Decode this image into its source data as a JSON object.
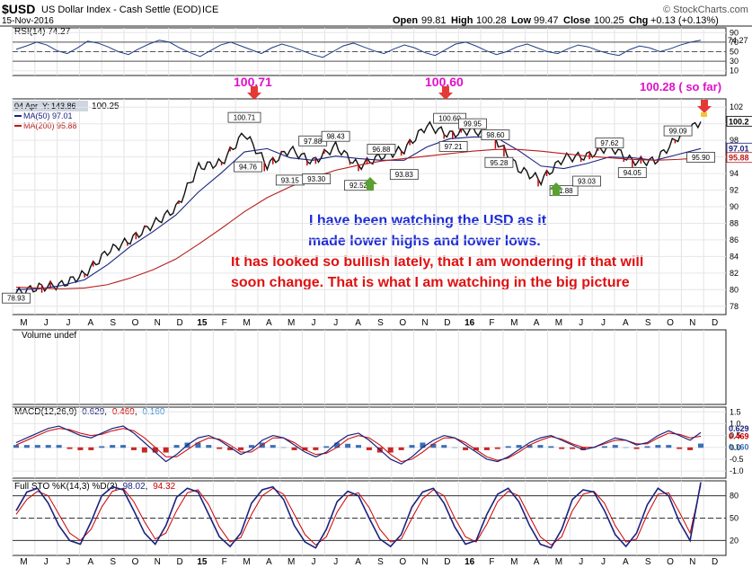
{
  "header": {
    "symbol": "$USD",
    "description": "US Dollar Index - Cash Settle (EOD)",
    "exchange": "ICE",
    "date": "15-Nov-2016",
    "brand": "© StockCharts.com",
    "quote": {
      "open_label": "Open",
      "open": "99.81",
      "high_label": "High",
      "high": "100.28",
      "low_label": "Low",
      "low": "99.47",
      "close_label": "Close",
      "close": "100.25",
      "chg_label": "Chg",
      "chg": "+0.13 (+0.13%)"
    }
  },
  "colors": {
    "price": "#111111",
    "price_down": "#cc0000",
    "ma50": "#1a237e",
    "ma200": "#b71c1c",
    "rsi": "#1f3c88",
    "rsi_fill": "#6f86c8",
    "stoch_k": "#1a237e",
    "stoch_d": "#cc0000",
    "macd": "#1a237e",
    "signal": "#cc0000",
    "hist_pos": "#3b6fb6",
    "hist_neg": "#c62828",
    "annot_magenta": "#e010c8",
    "annot_blue": "#1d2bd6",
    "annot_red": "#e01010",
    "arrow_red": "#e53935",
    "arrow_green": "#5aa033"
  },
  "chart_data": [
    {
      "panel": "rsi",
      "type": "line",
      "title": "RSI(14) 74.27",
      "y_ticks": [
        "90",
        "70",
        "50",
        "30",
        "10"
      ],
      "last_value": "74.27",
      "values": [
        55,
        62,
        70,
        64,
        52,
        46,
        58,
        72,
        68,
        60,
        50,
        44,
        56,
        66,
        74,
        70,
        58,
        48,
        40,
        52,
        64,
        70,
        62,
        54,
        46,
        58,
        66,
        60,
        52,
        44,
        38,
        50,
        62,
        68,
        60,
        52,
        46,
        56,
        64,
        58,
        48,
        42,
        54,
        66,
        70,
        62,
        52,
        44,
        50,
        60,
        66,
        58,
        50,
        46,
        56,
        64,
        60,
        52,
        46,
        42,
        54,
        62,
        58,
        50,
        56,
        64,
        70,
        74
      ]
    },
    {
      "panel": "price",
      "type": "line",
      "legend_date": "04 Apr",
      "legend_y": "143.86",
      "legend_close": "100.25",
      "ma50_label": "MA(50) 97.01",
      "ma200_label": "MA(200) 95.88",
      "y_ticks": [
        "102",
        "100",
        "98",
        "96",
        "94",
        "92",
        "90",
        "88",
        "86",
        "84",
        "82",
        "80",
        "78"
      ],
      "right_badges": [
        "100.2",
        "97.01",
        "95.88"
      ],
      "x_labels": [
        "M",
        "J",
        "J",
        "A",
        "S",
        "O",
        "N",
        "D",
        "15",
        "F",
        "M",
        "A",
        "M",
        "J",
        "J",
        "A",
        "S",
        "O",
        "N",
        "D",
        "16",
        "F",
        "M",
        "A",
        "M",
        "J",
        "J",
        "A",
        "S",
        "O",
        "N",
        "D"
      ],
      "x": [
        "2014-05",
        "2014-06",
        "2014-07",
        "2014-08",
        "2014-09",
        "2014-10",
        "2014-11",
        "2014-12",
        "2015-01",
        "2015-02",
        "2015-03",
        "2015-04",
        "2015-05",
        "2015-06",
        "2015-07",
        "2015-08",
        "2015-09",
        "2015-10",
        "2015-11",
        "2015-12",
        "2016-01",
        "2016-02",
        "2016-03",
        "2016-04",
        "2016-05",
        "2016-06",
        "2016-07",
        "2016-08",
        "2016-09",
        "2016-10",
        "2016-11"
      ],
      "close": [
        79.6,
        80.3,
        80.6,
        81.9,
        84.6,
        86.0,
        87.9,
        89.8,
        94.8,
        95.3,
        98.9,
        95.0,
        96.9,
        95.4,
        97.3,
        94.9,
        96.1,
        96.9,
        99.8,
        98.7,
        99.3,
        98.2,
        94.6,
        93.2,
        95.9,
        96.1,
        97.3,
        95.5,
        95.5,
        98.4,
        100.25
      ],
      "ma50": [
        80.0,
        80.1,
        80.5,
        81.2,
        83.0,
        85.2,
        87.0,
        89.0,
        91.8,
        94.1,
        96.6,
        97.0,
        95.9,
        95.6,
        96.1,
        95.8,
        95.6,
        95.6,
        97.2,
        98.2,
        98.4,
        98.4,
        96.8,
        94.9,
        94.6,
        95.2,
        96.0,
        95.9,
        95.6,
        96.3,
        97.01
      ],
      "ma200": [
        80.3,
        80.2,
        80.1,
        80.2,
        80.6,
        81.4,
        82.4,
        83.7,
        85.5,
        87.4,
        89.4,
        91.1,
        92.4,
        93.5,
        94.4,
        95.0,
        95.5,
        95.8,
        96.1,
        96.4,
        96.7,
        96.9,
        96.9,
        96.7,
        96.4,
        96.1,
        95.9,
        95.7,
        95.6,
        95.7,
        95.88
      ],
      "peak_labels": [
        {
          "x": "2014-05",
          "label": "78.93",
          "value": 78.93
        },
        {
          "x": "2015-03",
          "label": "100.71",
          "value": 100.71
        },
        {
          "x": "2015-03",
          "label": "94.76",
          "value": 94.76
        },
        {
          "x": "2015-05",
          "label": "93.15",
          "value": 93.15
        },
        {
          "x": "2015-06",
          "label": "97.88",
          "value": 97.88
        },
        {
          "x": "2015-06",
          "label": "93.30",
          "value": 93.3
        },
        {
          "x": "2015-07",
          "label": "98.43",
          "value": 98.43
        },
        {
          "x": "2015-08",
          "label": "92.52",
          "value": 92.52
        },
        {
          "x": "2015-09",
          "label": "96.88",
          "value": 96.88
        },
        {
          "x": "2015-10",
          "label": "93.83",
          "value": 93.83
        },
        {
          "x": "2015-12",
          "label": "100.60",
          "value": 100.6
        },
        {
          "x": "2015-12",
          "label": "97.21",
          "value": 97.21
        },
        {
          "x": "2016-01",
          "label": "99.95",
          "value": 99.95
        },
        {
          "x": "2016-02",
          "label": "98.60",
          "value": 98.6
        },
        {
          "x": "2016-02",
          "label": "95.28",
          "value": 95.28
        },
        {
          "x": "2016-05",
          "label": "91.88",
          "value": 91.88
        },
        {
          "x": "2016-06",
          "label": "93.03",
          "value": 93.03
        },
        {
          "x": "2016-07",
          "label": "97.62",
          "value": 97.62
        },
        {
          "x": "2016-08",
          "label": "94.05",
          "value": 94.05
        },
        {
          "x": "2016-10",
          "label": "99.09",
          "value": 99.09
        },
        {
          "x": "2016-11",
          "label": "95.90",
          "value": 95.9
        }
      ],
      "annotations": {
        "high1": "100.71",
        "high2": "100.60",
        "high3": "100.28 ( so far)",
        "note_blue_1": "I have been watching the USD as it",
        "note_blue_2": "made lower highs and lower lows.",
        "note_red_1": "It has looked so bullish lately, that I am wondering if that will",
        "note_red_2": "soon change.  That is what I am watching in the big picture"
      }
    },
    {
      "panel": "volume",
      "type": "bar",
      "title": "Volume undef"
    },
    {
      "panel": "macd",
      "type": "line",
      "title_prefix": "MACD(12,26,9)",
      "macd_value": "0.629",
      "signal_value": "0.469",
      "hist_value": "0.160",
      "y_ticks": [
        "1.5",
        "1.0",
        "0.5",
        "0.0",
        "-0.5",
        "-1.0"
      ],
      "right_badges": [
        "0.629",
        "0.469",
        "0.160"
      ],
      "macd": [
        0.2,
        0.4,
        0.6,
        0.8,
        0.9,
        0.7,
        0.5,
        0.4,
        0.6,
        0.8,
        0.9,
        0.6,
        0.2,
        -0.2,
        -0.6,
        -0.3,
        0.1,
        0.4,
        0.5,
        0.3,
        0.0,
        -0.3,
        -0.1,
        0.3,
        0.5,
        0.4,
        0.1,
        -0.2,
        -0.4,
        -0.2,
        0.2,
        0.5,
        0.6,
        0.3,
        -0.1,
        -0.5,
        -0.7,
        -0.4,
        0.0,
        0.3,
        0.5,
        0.4,
        0.1,
        -0.2,
        -0.5,
        -0.6,
        -0.4,
        -0.1,
        0.2,
        0.4,
        0.5,
        0.3,
        0.1,
        -0.1,
        0.0,
        0.2,
        0.4,
        0.3,
        0.1,
        0.2,
        0.5,
        0.7,
        0.5,
        0.3,
        0.629
      ],
      "signal": [
        0.1,
        0.3,
        0.5,
        0.7,
        0.8,
        0.75,
        0.6,
        0.5,
        0.55,
        0.7,
        0.8,
        0.7,
        0.4,
        0.0,
        -0.4,
        -0.4,
        -0.1,
        0.2,
        0.4,
        0.35,
        0.1,
        -0.2,
        -0.2,
        0.1,
        0.4,
        0.4,
        0.2,
        -0.1,
        -0.3,
        -0.25,
        0.0,
        0.35,
        0.5,
        0.4,
        0.1,
        -0.3,
        -0.6,
        -0.5,
        -0.2,
        0.15,
        0.4,
        0.4,
        0.2,
        -0.1,
        -0.4,
        -0.55,
        -0.45,
        -0.2,
        0.1,
        0.3,
        0.45,
        0.35,
        0.15,
        0.0,
        0.0,
        0.15,
        0.3,
        0.3,
        0.15,
        0.15,
        0.4,
        0.6,
        0.55,
        0.4,
        0.469
      ]
    },
    {
      "panel": "stochastic",
      "type": "line",
      "title_prefix": "Full STO %K(14,3) %D(3)",
      "k_value": "98.02",
      "d_value": "94.32",
      "y_ticks": [
        "80",
        "50",
        "20"
      ],
      "k": [
        60,
        85,
        90,
        70,
        40,
        20,
        15,
        45,
        80,
        92,
        88,
        60,
        30,
        15,
        40,
        78,
        90,
        85,
        55,
        25,
        12,
        30,
        70,
        88,
        92,
        75,
        40,
        18,
        10,
        35,
        72,
        86,
        80,
        50,
        22,
        12,
        28,
        65,
        85,
        90,
        70,
        38,
        15,
        20,
        55,
        82,
        90,
        72,
        40,
        15,
        10,
        35,
        75,
        88,
        85,
        60,
        28,
        12,
        30,
        68,
        90,
        80,
        45,
        20,
        98.02
      ],
      "d": [
        55,
        75,
        86,
        80,
        55,
        30,
        20,
        35,
        65,
        86,
        90,
        72,
        45,
        22,
        30,
        60,
        84,
        88,
        68,
        38,
        18,
        24,
        55,
        80,
        90,
        82,
        55,
        28,
        14,
        25,
        58,
        80,
        84,
        64,
        35,
        18,
        22,
        50,
        76,
        88,
        80,
        50,
        25,
        18,
        42,
        72,
        86,
        80,
        52,
        25,
        14,
        25,
        60,
        82,
        86,
        70,
        40,
        18,
        22,
        55,
        82,
        84,
        58,
        30,
        94.32
      ]
    }
  ]
}
